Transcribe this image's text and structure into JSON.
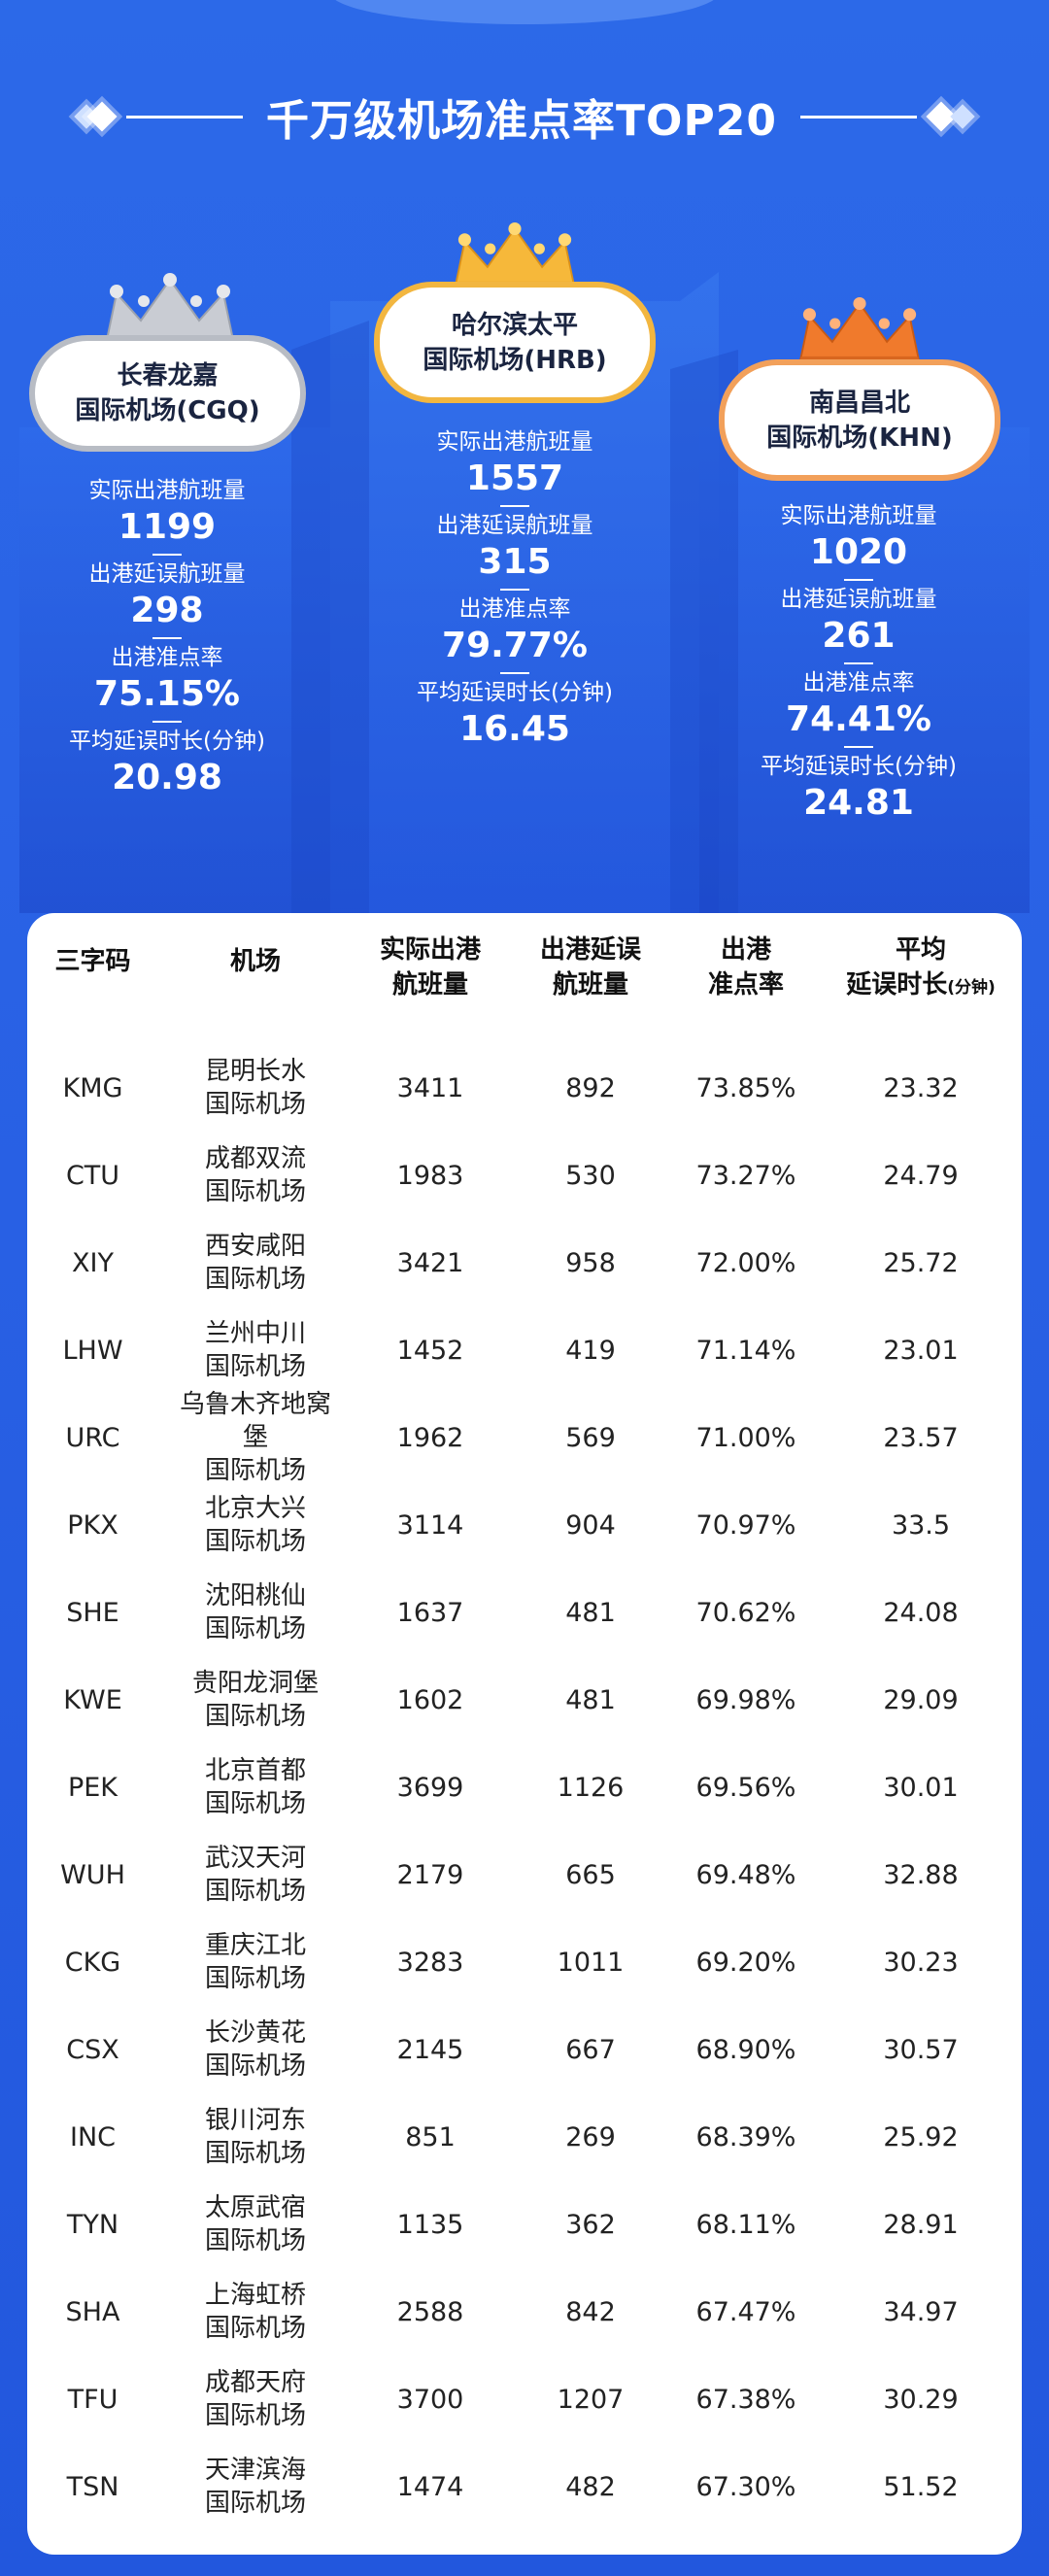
{
  "title": "千万级机场准点率TOP20",
  "podium": {
    "stat_labels": {
      "actual": "实际出港航班量",
      "delayed": "出港延误航班量",
      "ontime": "出港准点率",
      "avg_delay": "平均延误时长(分钟)"
    },
    "first": {
      "name_line1": "哈尔滨太平",
      "name_line2": "国际机场(HRB)",
      "actual": "1557",
      "delayed": "315",
      "ontime": "79.77%",
      "avg_delay": "16.45"
    },
    "second": {
      "name_line1": "长春龙嘉",
      "name_line2": "国际机场(CGQ)",
      "actual": "1199",
      "delayed": "298",
      "ontime": "75.15%",
      "avg_delay": "20.98"
    },
    "third": {
      "name_line1": "南昌昌北",
      "name_line2": "国际机场(KHN)",
      "actual": "1020",
      "delayed": "261",
      "ontime": "74.41%",
      "avg_delay": "24.81"
    }
  },
  "table": {
    "headers": {
      "code": "三字码",
      "airport": "机场",
      "actual_1": "实际出港",
      "actual_2": "航班量",
      "delayed_1": "出港延误",
      "delayed_2": "航班量",
      "ontime_1": "出港",
      "ontime_2": "准点率",
      "avg_1": "平均",
      "avg_2": "延误时长",
      "avg_unit": "(分钟)"
    },
    "rows": [
      {
        "code": "KMG",
        "name1": "昆明长水",
        "name2": "国际机场",
        "actual": "3411",
        "delayed": "892",
        "ontime": "73.85%",
        "avg": "23.32"
      },
      {
        "code": "CTU",
        "name1": "成都双流",
        "name2": "国际机场",
        "actual": "1983",
        "delayed": "530",
        "ontime": "73.27%",
        "avg": "24.79"
      },
      {
        "code": "XIY",
        "name1": "西安咸阳",
        "name2": "国际机场",
        "actual": "3421",
        "delayed": "958",
        "ontime": "72.00%",
        "avg": "25.72"
      },
      {
        "code": "LHW",
        "name1": "兰州中川",
        "name2": "国际机场",
        "actual": "1452",
        "delayed": "419",
        "ontime": "71.14%",
        "avg": "23.01"
      },
      {
        "code": "URC",
        "name1": "乌鲁木齐地窝堡",
        "name2": "国际机场",
        "actual": "1962",
        "delayed": "569",
        "ontime": "71.00%",
        "avg": "23.57"
      },
      {
        "code": "PKX",
        "name1": "北京大兴",
        "name2": "国际机场",
        "actual": "3114",
        "delayed": "904",
        "ontime": "70.97%",
        "avg": "33.5"
      },
      {
        "code": "SHE",
        "name1": "沈阳桃仙",
        "name2": "国际机场",
        "actual": "1637",
        "delayed": "481",
        "ontime": "70.62%",
        "avg": "24.08"
      },
      {
        "code": "KWE",
        "name1": "贵阳龙洞堡",
        "name2": "国际机场",
        "actual": "1602",
        "delayed": "481",
        "ontime": "69.98%",
        "avg": "29.09"
      },
      {
        "code": "PEK",
        "name1": "北京首都",
        "name2": "国际机场",
        "actual": "3699",
        "delayed": "1126",
        "ontime": "69.56%",
        "avg": "30.01"
      },
      {
        "code": "WUH",
        "name1": "武汉天河",
        "name2": "国际机场",
        "actual": "2179",
        "delayed": "665",
        "ontime": "69.48%",
        "avg": "32.88"
      },
      {
        "code": "CKG",
        "name1": "重庆江北",
        "name2": "国际机场",
        "actual": "3283",
        "delayed": "1011",
        "ontime": "69.20%",
        "avg": "30.23"
      },
      {
        "code": "CSX",
        "name1": "长沙黄花",
        "name2": "国际机场",
        "actual": "2145",
        "delayed": "667",
        "ontime": "68.90%",
        "avg": "30.57"
      },
      {
        "code": "INC",
        "name1": "银川河东",
        "name2": "国际机场",
        "actual": "851",
        "delayed": "269",
        "ontime": "68.39%",
        "avg": "25.92"
      },
      {
        "code": "TYN",
        "name1": "太原武宿",
        "name2": "国际机场",
        "actual": "1135",
        "delayed": "362",
        "ontime": "68.11%",
        "avg": "28.91"
      },
      {
        "code": "SHA",
        "name1": "上海虹桥",
        "name2": "国际机场",
        "actual": "2588",
        "delayed": "842",
        "ontime": "67.47%",
        "avg": "34.97"
      },
      {
        "code": "TFU",
        "name1": "成都天府",
        "name2": "国际机场",
        "actual": "3700",
        "delayed": "1207",
        "ontime": "67.38%",
        "avg": "30.29"
      },
      {
        "code": "TSN",
        "name1": "天津滨海",
        "name2": "国际机场",
        "actual": "1474",
        "delayed": "482",
        "ontime": "67.30%",
        "avg": "51.52"
      }
    ]
  },
  "colors": {
    "background": "#2a63e6",
    "gold": "#f6b83a",
    "silver": "#c9ccd3",
    "bronze": "#f07a2c"
  }
}
